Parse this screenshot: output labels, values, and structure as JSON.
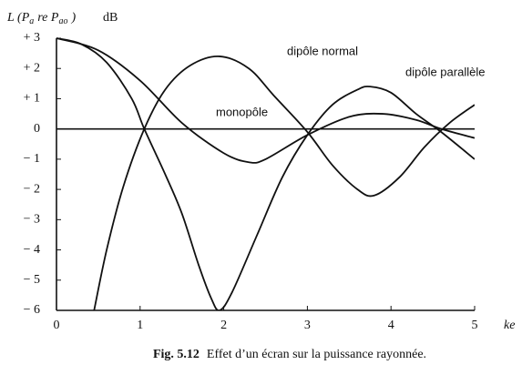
{
  "chart_data": {
    "type": "line",
    "figure_label": "Fig. 5.12",
    "title": "Effet d’un écran sur la puissance rayonnée.",
    "ylabel": [
      {
        "text": "L (P",
        "sub": false
      },
      {
        "text": "a",
        "sub": true
      },
      {
        "text": "re P",
        "sub": false
      },
      {
        "text": "ao",
        "sub": true
      },
      {
        "text": ")",
        "sub": false
      }
    ],
    "yunit": "dB",
    "xlabel": "ke",
    "xlim": [
      0,
      5
    ],
    "ylim": [
      -6,
      3
    ],
    "xticks": [
      0,
      1,
      2,
      3,
      4,
      5
    ],
    "yticks": [
      {
        "value": 3,
        "label": "+ 3"
      },
      {
        "value": 2,
        "label": "+ 2"
      },
      {
        "value": 1,
        "label": "+ 1"
      },
      0,
      {
        "value": -1,
        "label": "− 1"
      },
      {
        "value": -2,
        "label": "− 2"
      },
      {
        "value": -3,
        "label": "− 3"
      },
      {
        "value": -4,
        "label": "− 4"
      },
      {
        "value": -5,
        "label": "− 5"
      },
      {
        "value": -6,
        "label": "− 6"
      }
    ],
    "series": [
      {
        "name": "monopôle",
        "color": "#111111",
        "x": [
          0,
          0.5,
          1,
          1.5,
          2,
          2.3,
          2.5,
          3,
          3.5,
          3.9,
          4.3,
          4.6,
          5
        ],
        "values": [
          3,
          2.6,
          1.6,
          0.2,
          -0.8,
          -1.1,
          -1.0,
          -0.2,
          0.4,
          0.5,
          0.3,
          0,
          -0.3
        ]
      },
      {
        "name": "dipôle normal",
        "color": "#111111",
        "x": [
          0.45,
          0.6,
          0.8,
          1.05,
          1.3,
          1.6,
          1.95,
          2.3,
          2.6,
          3.0,
          3.3,
          3.6,
          3.8,
          4.1,
          4.4,
          4.7,
          5
        ],
        "values": [
          -6,
          -4,
          -1.9,
          0,
          1.3,
          2.1,
          2.4,
          2.0,
          1.1,
          -0.1,
          -1.2,
          -2.0,
          -2.2,
          -1.6,
          -0.6,
          0.2,
          0.8
        ]
      },
      {
        "name": "dipôle parallèle",
        "color": "#111111",
        "x": [
          0,
          0.3,
          0.6,
          0.9,
          1.05,
          1.3,
          1.5,
          1.7,
          1.85,
          1.95,
          2.1,
          2.4,
          2.7,
          3.0,
          3.3,
          3.6,
          3.75,
          4.0,
          4.3,
          4.6,
          5
        ],
        "values": [
          3,
          2.8,
          2.2,
          1.0,
          0,
          -1.5,
          -2.8,
          -4.5,
          -5.6,
          -6,
          -5.4,
          -3.5,
          -1.6,
          -0.2,
          0.8,
          1.3,
          1.4,
          1.2,
          0.5,
          -0.1,
          -1.0
        ]
      }
    ]
  }
}
